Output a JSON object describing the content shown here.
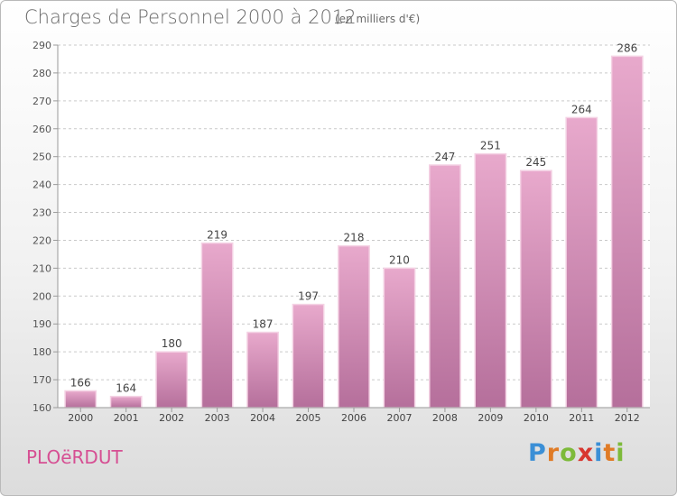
{
  "title": "Charges de Personnel 2000 à 2012",
  "subtitle": "(en milliers d'€)",
  "location": "PLOëRDUT",
  "brand": {
    "letters": [
      "P",
      "r",
      "o",
      "x",
      "i",
      "t",
      "i"
    ],
    "colors": [
      "#3b8fd6",
      "#e07b26",
      "#7dba3a",
      "#d8362f",
      "#3b8fd6",
      "#e07b26",
      "#7dba3a"
    ]
  },
  "colors": {
    "bar_top": "#e8a9cc",
    "bar_bottom": "#b56f9b",
    "title": "#6a6a6a",
    "location": "#d64f93"
  },
  "chart_data": {
    "type": "bar",
    "categories": [
      "2000",
      "2001",
      "2002",
      "2003",
      "2004",
      "2005",
      "2006",
      "2007",
      "2008",
      "2009",
      "2010",
      "2011",
      "2012"
    ],
    "values": [
      166,
      164,
      180,
      219,
      187,
      197,
      218,
      210,
      247,
      251,
      245,
      264,
      286
    ],
    "ylim": [
      160,
      290
    ],
    "yticks": [
      160,
      170,
      180,
      190,
      200,
      210,
      220,
      230,
      240,
      250,
      260,
      270,
      280,
      290
    ],
    "grid": true,
    "data_labels": true
  }
}
